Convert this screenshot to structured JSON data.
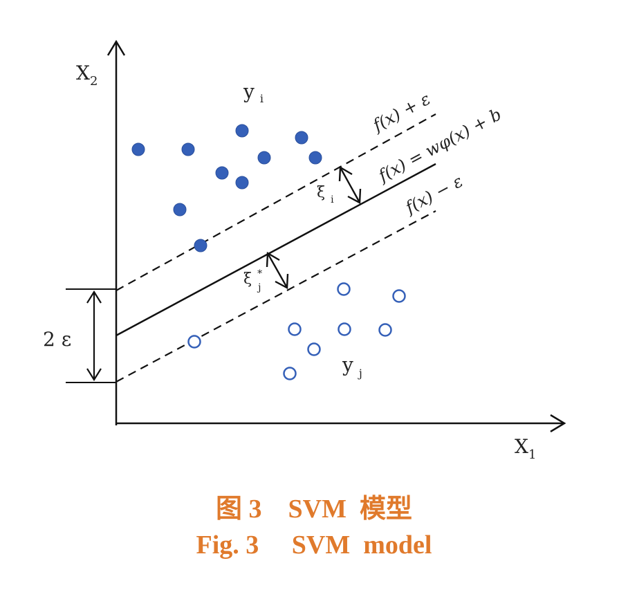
{
  "figure": {
    "axis_x_label": "X",
    "axis_x_sub": "1",
    "axis_y_label": "X",
    "axis_y_sub": "2",
    "class_top_label": "y",
    "class_top_sub": "i",
    "class_bottom_label": "y",
    "class_bottom_sub": "j",
    "upper_margin_label": "f(x) + ε",
    "center_line_label": "f(x) = wφ(x) + b",
    "lower_margin_label": "f(x) − ε",
    "slack_upper_label": "ξ",
    "slack_upper_sub": "i",
    "slack_lower_label": "ξ",
    "slack_lower_sup": "*",
    "slack_lower_sub": "j",
    "margin_width_label": "2 ε",
    "colors": {
      "filled_point": "#3560b8",
      "hollow_point": "#3560b8",
      "lines": "#111111",
      "caption": "#e07a2c"
    }
  },
  "caption": {
    "chinese": "图 3    SVM  模型",
    "english": "Fig. 3     SVM  model"
  }
}
